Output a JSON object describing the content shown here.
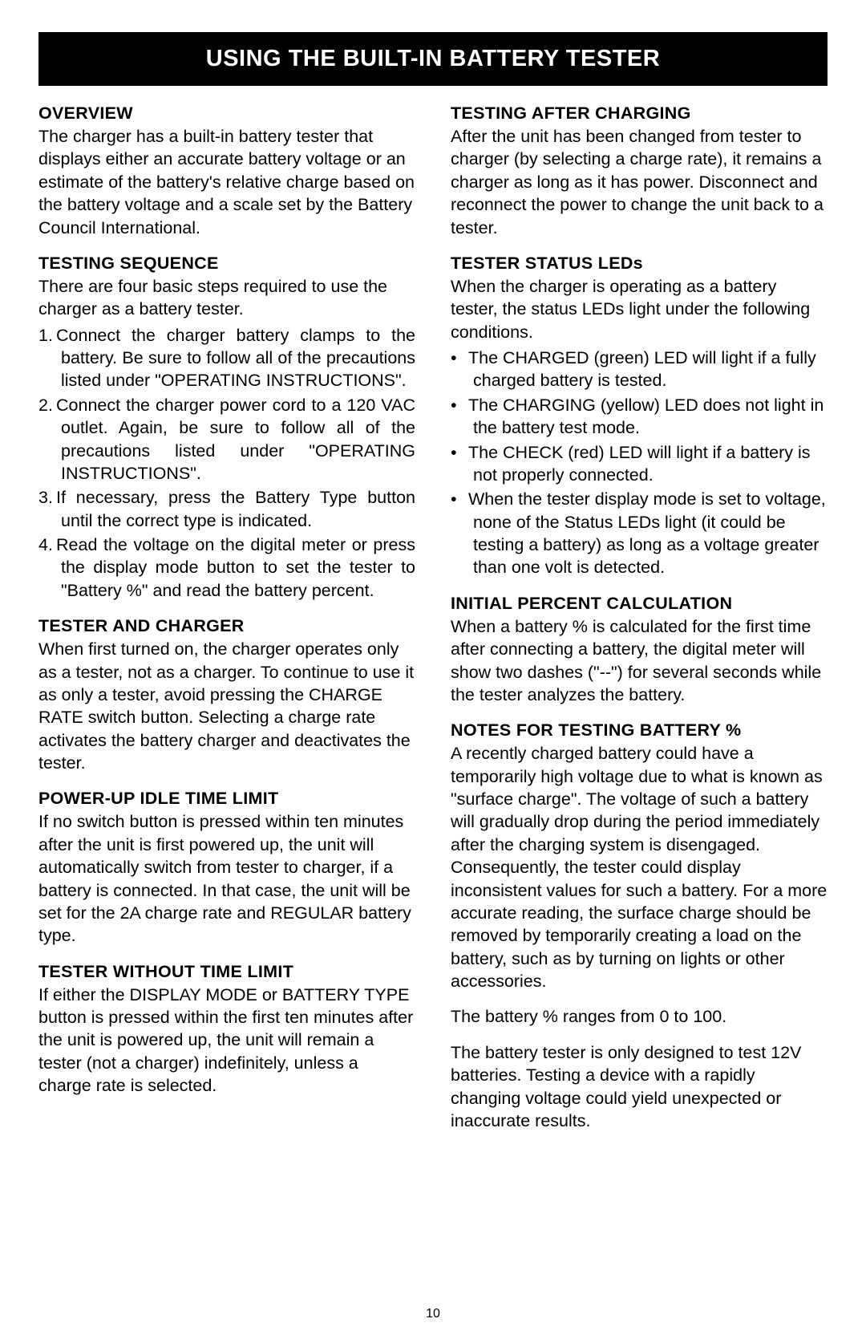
{
  "banner_title": "USING THE BUILT-IN BATTERY TESTER",
  "page_number": "10",
  "left": {
    "overview": {
      "heading": "OVERVIEW",
      "body": "The charger has a built-in battery tester that displays either an accurate battery voltage or an estimate of the battery's relative charge based on the battery voltage and a scale set by the Battery Council International."
    },
    "sequence": {
      "heading": "TESTING SEQUENCE",
      "intro": "There are four basic steps required to use the charger as a battery tester.",
      "items": [
        "Connect the charger battery clamps to the battery. Be sure to follow all of the precautions listed under  \"OPERAT­ING INSTRUCTIONS\".",
        "Connect the charger power cord to a 120 VAC outlet. Again, be sure to follow all of the precautions listed under \"OP­ERATING INSTRUCTIONS\".",
        "If necessary, press the Battery Type button until the correct type is indi­cated.",
        "Read the voltage on the digital meter or press the display mode button to set the tester to \"Battery %\" and read the battery percent."
      ]
    },
    "tester_charger": {
      "heading": "TESTER AND CHARGER",
      "body": "When first turned on, the charger operates only as a tester, not as a charger. To continue to use it as only a tester, avoid pressing the CHARGE RATE switch button. Selecting a charge rate activates the battery charger and deactivates the tester."
    },
    "powerup": {
      "heading": "POWER-UP IDLE TIME LIMIT",
      "body": "If no switch button is pressed within ten minutes after the unit is first powered up, the unit will automatically switch from tester to charger, if a battery is connected. In that case, the unit will be set for the 2A charge rate and REGU­LAR battery type."
    },
    "without_limit": {
      "heading": "TESTER WITHOUT TIME LIMIT",
      "body": "If either the DISPLAY MODE or BAT­TERY TYPE button is pressed within the first ten minutes after the unit is powered up, the unit will remain a tester (not a charger) indefinitely, unless a charge rate is selected."
    }
  },
  "right": {
    "after_charging": {
      "heading": "TESTING AFTER CHARGING",
      "body": "After the unit has been changed from tester to charger (by selecting a charge rate), it remains a charger as long as it has power. Disconnect and reconnect the power to change the unit back to a tester."
    },
    "status_leds": {
      "heading": "TESTER STATUS LEDs",
      "intro": "When the charger is operating as a battery tester, the status LEDs light under the following conditions.",
      "items": [
        "The CHARGED (green) LED will light if a fully charged battery is tested.",
        "The CHARGING (yellow) LED does not light in the battery test mode.",
        "The CHECK (red) LED will light if a battery is not properly connected.",
        "When the tester display mode is set to voltage, none of the Status LEDs light (it could be testing a battery) as long as a voltage greater than one volt is detected."
      ]
    },
    "initial_percent": {
      "heading": "INITIAL PERCENT CALCULATION",
      "body": "When a battery % is calculated for the first time after connecting a battery, the digital meter will show two dashes (\"--\") for several seconds while the tester analyzes the battery."
    },
    "notes": {
      "heading": "NOTES FOR TESTING BATTERY %",
      "body1": "A recently charged battery could have a temporarily high voltage due to what is known as \"surface charge\". The voltage of such a battery will gradually drop during the period immediately after the charging system is disengaged. Consequently, the tester could display inconsistent values for such a battery. For a more accurate reading, the surface charge should be removed by temporarily creating a load on the battery, such as by turning on lights or other accessories.",
      "body2": "The battery % ranges from 0 to 100.",
      "body3": "The battery tester is only designed to test 12V batteries. Testing a device with a rapidly changing voltage could yield unexpected or inaccurate results."
    }
  }
}
